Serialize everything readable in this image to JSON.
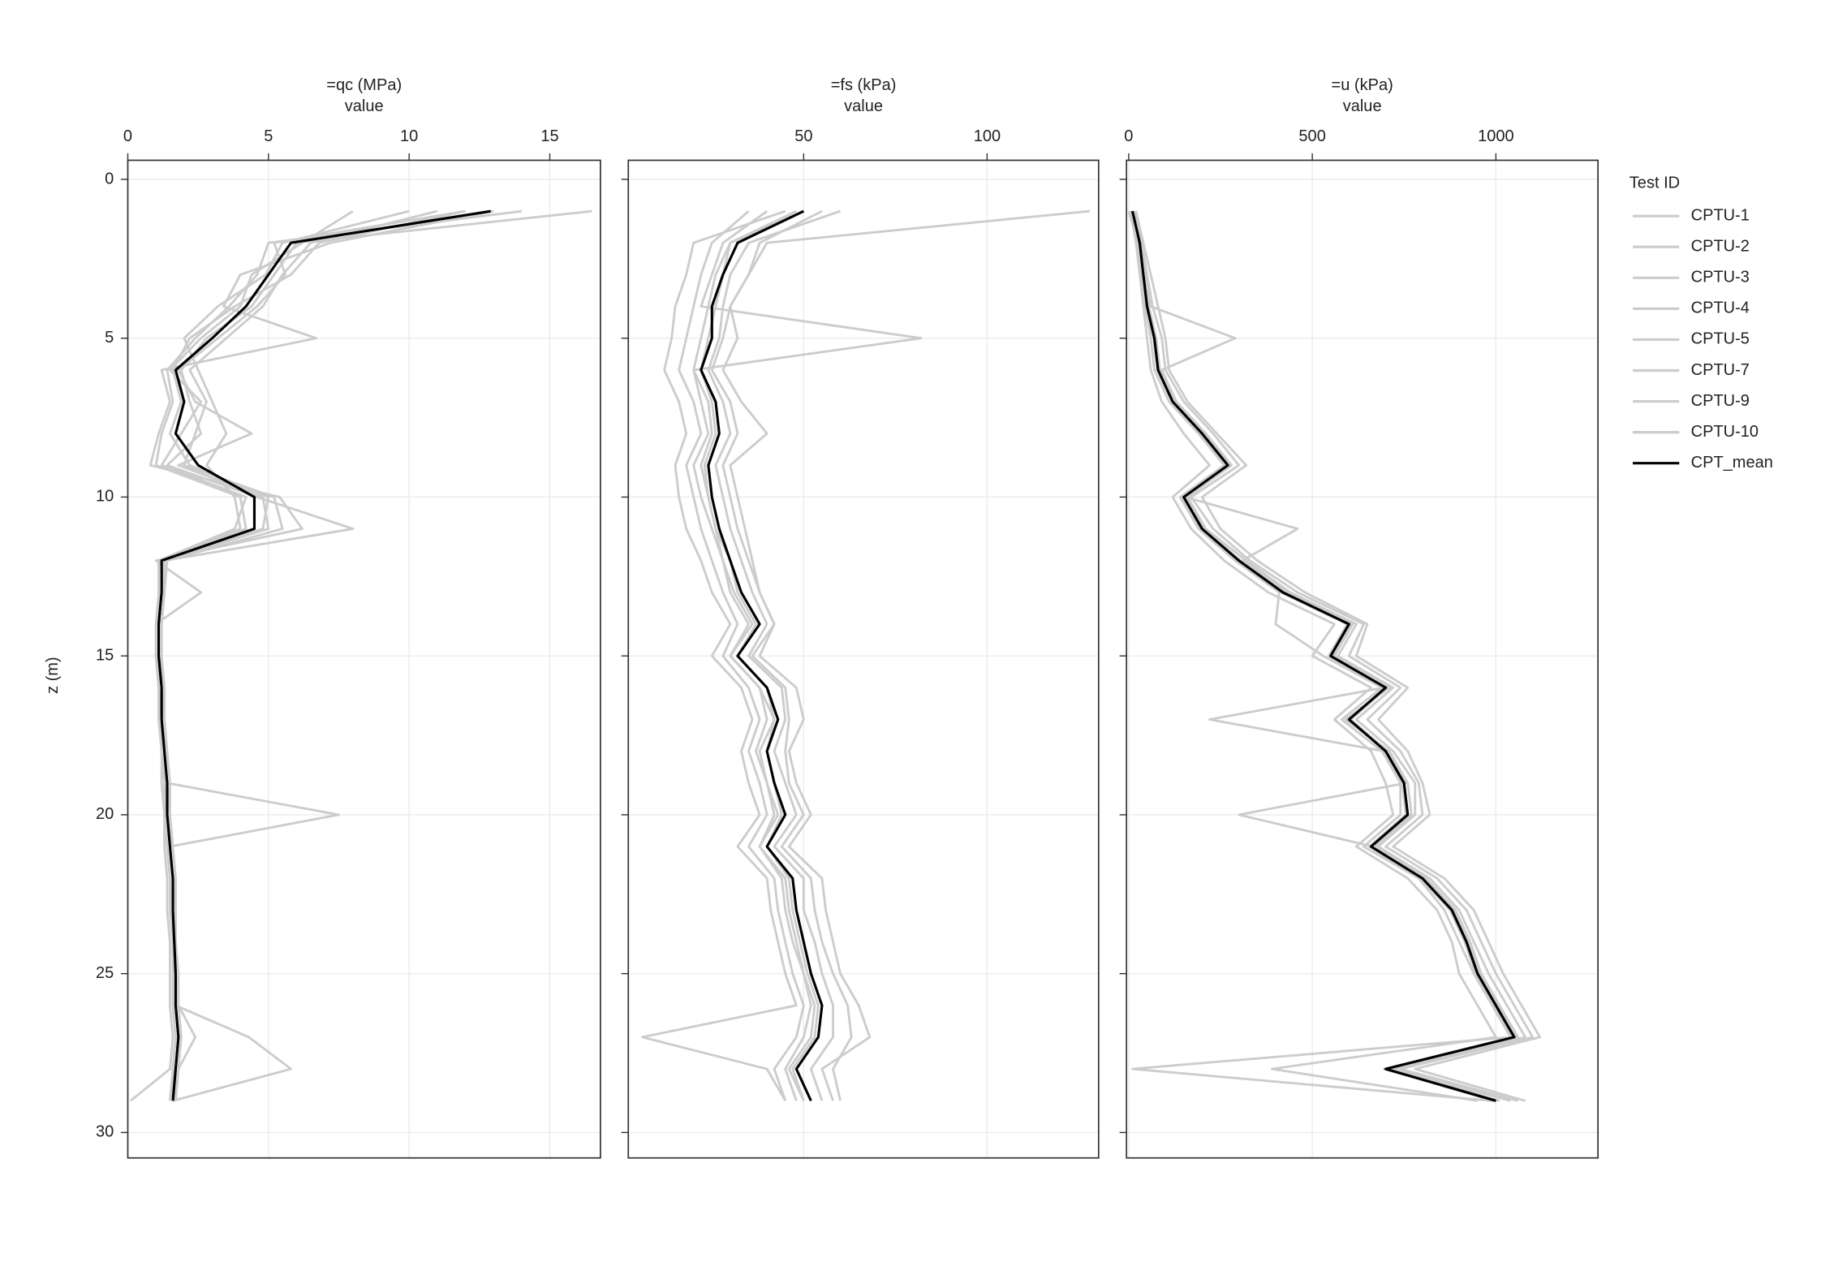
{
  "chart_data": [
    {
      "type": "line",
      "title": "=qc (MPa)",
      "x_label": "value",
      "y_label": "z (m)",
      "legend_title": "Test ID",
      "legend": "right",
      "grid": true,
      "y_reversed": true,
      "y": [
        1,
        2,
        3,
        4,
        5,
        6,
        7,
        8,
        9,
        10,
        11,
        12,
        13,
        14,
        15,
        16,
        17,
        18,
        19,
        20,
        21,
        22,
        23,
        24,
        25,
        26,
        27,
        28,
        29
      ],
      "xlim": [
        0,
        16.8
      ],
      "xticks": [
        0,
        5,
        10,
        15
      ],
      "ylim": [
        -0.6,
        30.8
      ],
      "yticks": [
        0,
        5,
        10,
        15,
        20,
        25,
        30
      ],
      "series": [
        {
          "name": "CPTU-1",
          "color": "#cccccc",
          "values": [
            11,
            6.5,
            5.5,
            4.8,
            3.5,
            2.2,
            2.8,
            2.4,
            2.0,
            5.2,
            5.5,
            1.4,
            1.3,
            1.2,
            1.2,
            1.3,
            1.3,
            1.4,
            1.5,
            1.5,
            1.6,
            1.7,
            1.7,
            1.7,
            1.8,
            1.8,
            2.4,
            1.8,
            1.7
          ]
        },
        {
          "name": "CPTU-2",
          "color": "#cccccc",
          "values": [
            14,
            5.0,
            4.6,
            3.6,
            2.4,
            1.4,
            1.6,
            1.2,
            1.0,
            4.0,
            4.2,
            1.1,
            1.1,
            1.0,
            1.0,
            1.1,
            1.1,
            1.2,
            1.3,
            1.3,
            1.4,
            1.5,
            1.5,
            1.6,
            1.6,
            1.6,
            1.7,
            1.6,
            1.5
          ]
        },
        {
          "name": "CPTU-3",
          "color": "#cccccc",
          "values": [
            16.5,
            6.0,
            5.2,
            4.4,
            2.8,
            1.9,
            2.2,
            2.6,
            1.4,
            4.6,
            8.0,
            1.3,
            1.2,
            1.1,
            1.1,
            1.2,
            1.2,
            1.3,
            1.4,
            7.5,
            1.5,
            1.6,
            1.6,
            1.7,
            1.7,
            1.7,
            4.3,
            5.8,
            1.6
          ]
        },
        {
          "name": "CPTU-4",
          "color": "#cccccc",
          "values": [
            13,
            7.2,
            4.0,
            3.4,
            6.7,
            1.2,
            1.5,
            1.1,
            0.8,
            5.4,
            6.2,
            1.0,
            2.6,
            1.0,
            1.0,
            1.1,
            1.1,
            1.2,
            1.2,
            1.3,
            1.3,
            1.4,
            1.4,
            1.5,
            1.5,
            1.5,
            1.6,
            1.5,
            0.1
          ]
        },
        {
          "name": "CPTU-5",
          "color": "#cccccc",
          "values": [
            10,
            5.5,
            4.9,
            3.2,
            2.0,
            2.5,
            3.0,
            3.5,
            2.8,
            3.8,
            4.0,
            1.2,
            1.2,
            1.1,
            1.1,
            1.2,
            1.2,
            1.3,
            1.4,
            1.4,
            1.5,
            1.6,
            1.6,
            1.7,
            1.7,
            1.7,
            1.8,
            1.7,
            1.7
          ]
        },
        {
          "name": "CPTU-7",
          "color": "#cccccc",
          "values": [
            12,
            5.2,
            5.6,
            4.6,
            3.2,
            1.8,
            2.4,
            4.4,
            1.8,
            4.8,
            5.0,
            1.3,
            1.3,
            1.2,
            1.2,
            1.2,
            1.3,
            1.3,
            1.4,
            1.5,
            1.5,
            1.6,
            1.7,
            1.7,
            1.7,
            1.8,
            1.9,
            1.8,
            1.7
          ]
        },
        {
          "name": "CPTU-9",
          "color": "#cccccc",
          "values": [
            8,
            6.2,
            4.4,
            4.0,
            2.6,
            1.5,
            2.6,
            1.9,
            1.2,
            4.2,
            3.8,
            1.1,
            1.1,
            1.1,
            1.1,
            1.1,
            1.2,
            1.2,
            1.3,
            1.3,
            1.4,
            1.5,
            1.5,
            1.6,
            1.6,
            1.6,
            1.7,
            1.6,
            1.6
          ]
        },
        {
          "name": "CPTU-10",
          "color": "#cccccc",
          "values": [
            12,
            6.8,
            5.8,
            3.8,
            2.2,
            1.6,
            1.9,
            1.5,
            2.2,
            5.0,
            4.8,
            1.2,
            1.2,
            1.1,
            1.1,
            1.2,
            1.2,
            1.3,
            1.3,
            1.4,
            1.5,
            1.6,
            1.6,
            1.6,
            1.7,
            1.7,
            1.8,
            1.7,
            1.6
          ]
        },
        {
          "name": "CPT_mean",
          "color": "#000000",
          "values": [
            12.9,
            5.8,
            5.0,
            4.2,
            3.0,
            1.7,
            2.0,
            1.7,
            2.5,
            4.5,
            4.5,
            1.2,
            1.2,
            1.1,
            1.1,
            1.2,
            1.2,
            1.3,
            1.4,
            1.4,
            1.5,
            1.6,
            1.6,
            1.65,
            1.7,
            1.7,
            1.8,
            1.7,
            1.6
          ]
        }
      ]
    },
    {
      "type": "line",
      "title": "=fs (kPa)",
      "x_label": "value",
      "grid": true,
      "y": [
        1,
        2,
        3,
        4,
        5,
        6,
        7,
        8,
        9,
        10,
        11,
        12,
        13,
        14,
        15,
        16,
        17,
        18,
        19,
        20,
        21,
        22,
        23,
        24,
        25,
        26,
        27,
        28,
        29
      ],
      "xlim": [
        2.2,
        130.4
      ],
      "xticks": [
        50,
        100
      ],
      "series": [
        {
          "color": "#cccccc",
          "values": [
            128,
            40,
            35,
            30,
            28,
            25,
            30,
            32,
            28,
            30,
            32,
            35,
            38,
            42,
            36,
            45,
            46,
            45,
            46,
            50,
            44,
            52,
            53,
            55,
            58,
            62,
            63,
            58,
            60
          ]
        },
        {
          "color": "#cccccc",
          "values": [
            45,
            20,
            18,
            15,
            14,
            12,
            16,
            18,
            15,
            16,
            18,
            22,
            25,
            30,
            25,
            33,
            36,
            33,
            35,
            38,
            32,
            40,
            41,
            43,
            45,
            48,
            6,
            40,
            45
          ]
        },
        {
          "color": "#cccccc",
          "values": [
            55,
            38,
            35,
            30,
            32,
            28,
            33,
            40,
            30,
            32,
            34,
            36,
            38,
            42,
            38,
            48,
            50,
            46,
            48,
            52,
            46,
            55,
            56,
            58,
            60,
            65,
            68,
            55,
            58
          ]
        },
        {
          "color": "#cccccc",
          "values": [
            40,
            28,
            25,
            22,
            82,
            20,
            24,
            25,
            22,
            24,
            26,
            28,
            30,
            35,
            30,
            38,
            40,
            37,
            40,
            42,
            38,
            44,
            45,
            47,
            50,
            52,
            50,
            45,
            48
          ]
        },
        {
          "color": "#cccccc",
          "values": [
            50,
            30,
            26,
            24,
            22,
            20,
            22,
            24,
            20,
            22,
            25,
            28,
            31,
            36,
            30,
            38,
            42,
            38,
            40,
            43,
            38,
            45,
            46,
            48,
            50,
            53,
            52,
            46,
            50
          ]
        },
        {
          "color": "#cccccc",
          "values": [
            60,
            35,
            30,
            28,
            27,
            24,
            28,
            30,
            26,
            28,
            30,
            33,
            36,
            40,
            35,
            44,
            45,
            42,
            45,
            48,
            42,
            50,
            50,
            53,
            55,
            58,
            58,
            52,
            55
          ]
        },
        {
          "color": "#cccccc",
          "values": [
            35,
            25,
            22,
            20,
            18,
            16,
            20,
            22,
            18,
            20,
            22,
            25,
            28,
            32,
            28,
            35,
            38,
            35,
            38,
            40,
            35,
            42,
            43,
            45,
            47,
            50,
            48,
            42,
            45
          ]
        },
        {
          "color": "#cccccc",
          "values": [
            48,
            30,
            28,
            26,
            24,
            22,
            25,
            26,
            23,
            24,
            26,
            30,
            32,
            37,
            32,
            40,
            42,
            40,
            42,
            44,
            40,
            46,
            47,
            49,
            51,
            54,
            53,
            47,
            50
          ]
        },
        {
          "color": "#000000",
          "values": [
            50,
            32,
            28,
            25,
            25,
            22,
            26,
            27,
            24,
            25,
            27,
            30,
            33,
            38,
            32,
            40,
            43,
            40,
            42,
            45,
            40,
            47,
            48,
            50,
            52,
            55,
            54,
            48,
            52
          ]
        }
      ]
    },
    {
      "type": "line",
      "title": "=u (kPa)",
      "x_label": "value",
      "grid": true,
      "y": [
        1,
        2,
        3,
        4,
        5,
        6,
        7,
        8,
        9,
        10,
        11,
        12,
        13,
        14,
        15,
        16,
        17,
        18,
        19,
        20,
        21,
        22,
        23,
        24,
        25,
        26,
        27,
        28,
        29
      ],
      "xlim": [
        -6,
        1278
      ],
      "xticks": [
        0,
        500,
        1000
      ],
      "series": [
        {
          "color": "#cccccc",
          "values": [
            20,
            40,
            60,
            80,
            100,
            110,
            160,
            240,
            320,
            200,
            250,
            350,
            480,
            650,
            620,
            760,
            680,
            760,
            800,
            820,
            720,
            860,
            940,
            980,
            1020,
            1070,
            1120,
            780,
            1080
          ]
        },
        {
          "color": "#cccccc",
          "values": [
            5,
            20,
            30,
            40,
            50,
            60,
            90,
            150,
            220,
            120,
            170,
            260,
            380,
            560,
            500,
            660,
            560,
            660,
            700,
            720,
            620,
            760,
            840,
            880,
            900,
            950,
            1000,
            390,
            950
          ]
        },
        {
          "color": "#cccccc",
          "values": [
            10,
            35,
            45,
            60,
            290,
            90,
            130,
            210,
            280,
            160,
            210,
            320,
            440,
            620,
            570,
            720,
            620,
            720,
            780,
            780,
            680,
            820,
            900,
            940,
            980,
            1030,
            1080,
            720,
            1040
          ]
        },
        {
          "color": "#cccccc",
          "values": [
            0,
            25,
            35,
            45,
            60,
            70,
            110,
            190,
            260,
            140,
            190,
            290,
            410,
            400,
            530,
            690,
            580,
            690,
            740,
            740,
            640,
            790,
            860,
            900,
            940,
            990,
            1040,
            10,
            990
          ]
        },
        {
          "color": "#cccccc",
          "values": [
            15,
            30,
            40,
            55,
            75,
            85,
            125,
            210,
            280,
            155,
            460,
            310,
            430,
            610,
            560,
            710,
            590,
            710,
            760,
            770,
            670,
            810,
            890,
            930,
            960,
            1010,
            1060,
            710,
            1010
          ]
        },
        {
          "color": "#cccccc",
          "values": [
            10,
            28,
            38,
            48,
            68,
            78,
            118,
            195,
            265,
            145,
            195,
            295,
            415,
            595,
            545,
            695,
            220,
            695,
            745,
            755,
            655,
            795,
            875,
            915,
            945,
            995,
            1045,
            695,
            995
          ]
        },
        {
          "color": "#cccccc",
          "values": [
            8,
            32,
            42,
            52,
            72,
            82,
            122,
            205,
            275,
            155,
            205,
            305,
            425,
            605,
            555,
            705,
            605,
            705,
            755,
            300,
            665,
            805,
            885,
            925,
            955,
            1005,
            1055,
            705,
            1005
          ]
        },
        {
          "color": "#cccccc",
          "values": [
            12,
            35,
            50,
            65,
            90,
            100,
            150,
            230,
            300,
            170,
            230,
            330,
            460,
            640,
            600,
            740,
            650,
            740,
            790,
            800,
            700,
            840,
            920,
            960,
            1000,
            1050,
            1100,
            740,
            1060
          ]
        },
        {
          "color": "#000000",
          "values": [
            10,
            30,
            40,
            50,
            70,
            80,
            120,
            200,
            270,
            150,
            200,
            300,
            420,
            600,
            550,
            700,
            600,
            700,
            750,
            760,
            660,
            800,
            880,
            920,
            950,
            1000,
            1050,
            700,
            1000
          ]
        }
      ]
    }
  ]
}
